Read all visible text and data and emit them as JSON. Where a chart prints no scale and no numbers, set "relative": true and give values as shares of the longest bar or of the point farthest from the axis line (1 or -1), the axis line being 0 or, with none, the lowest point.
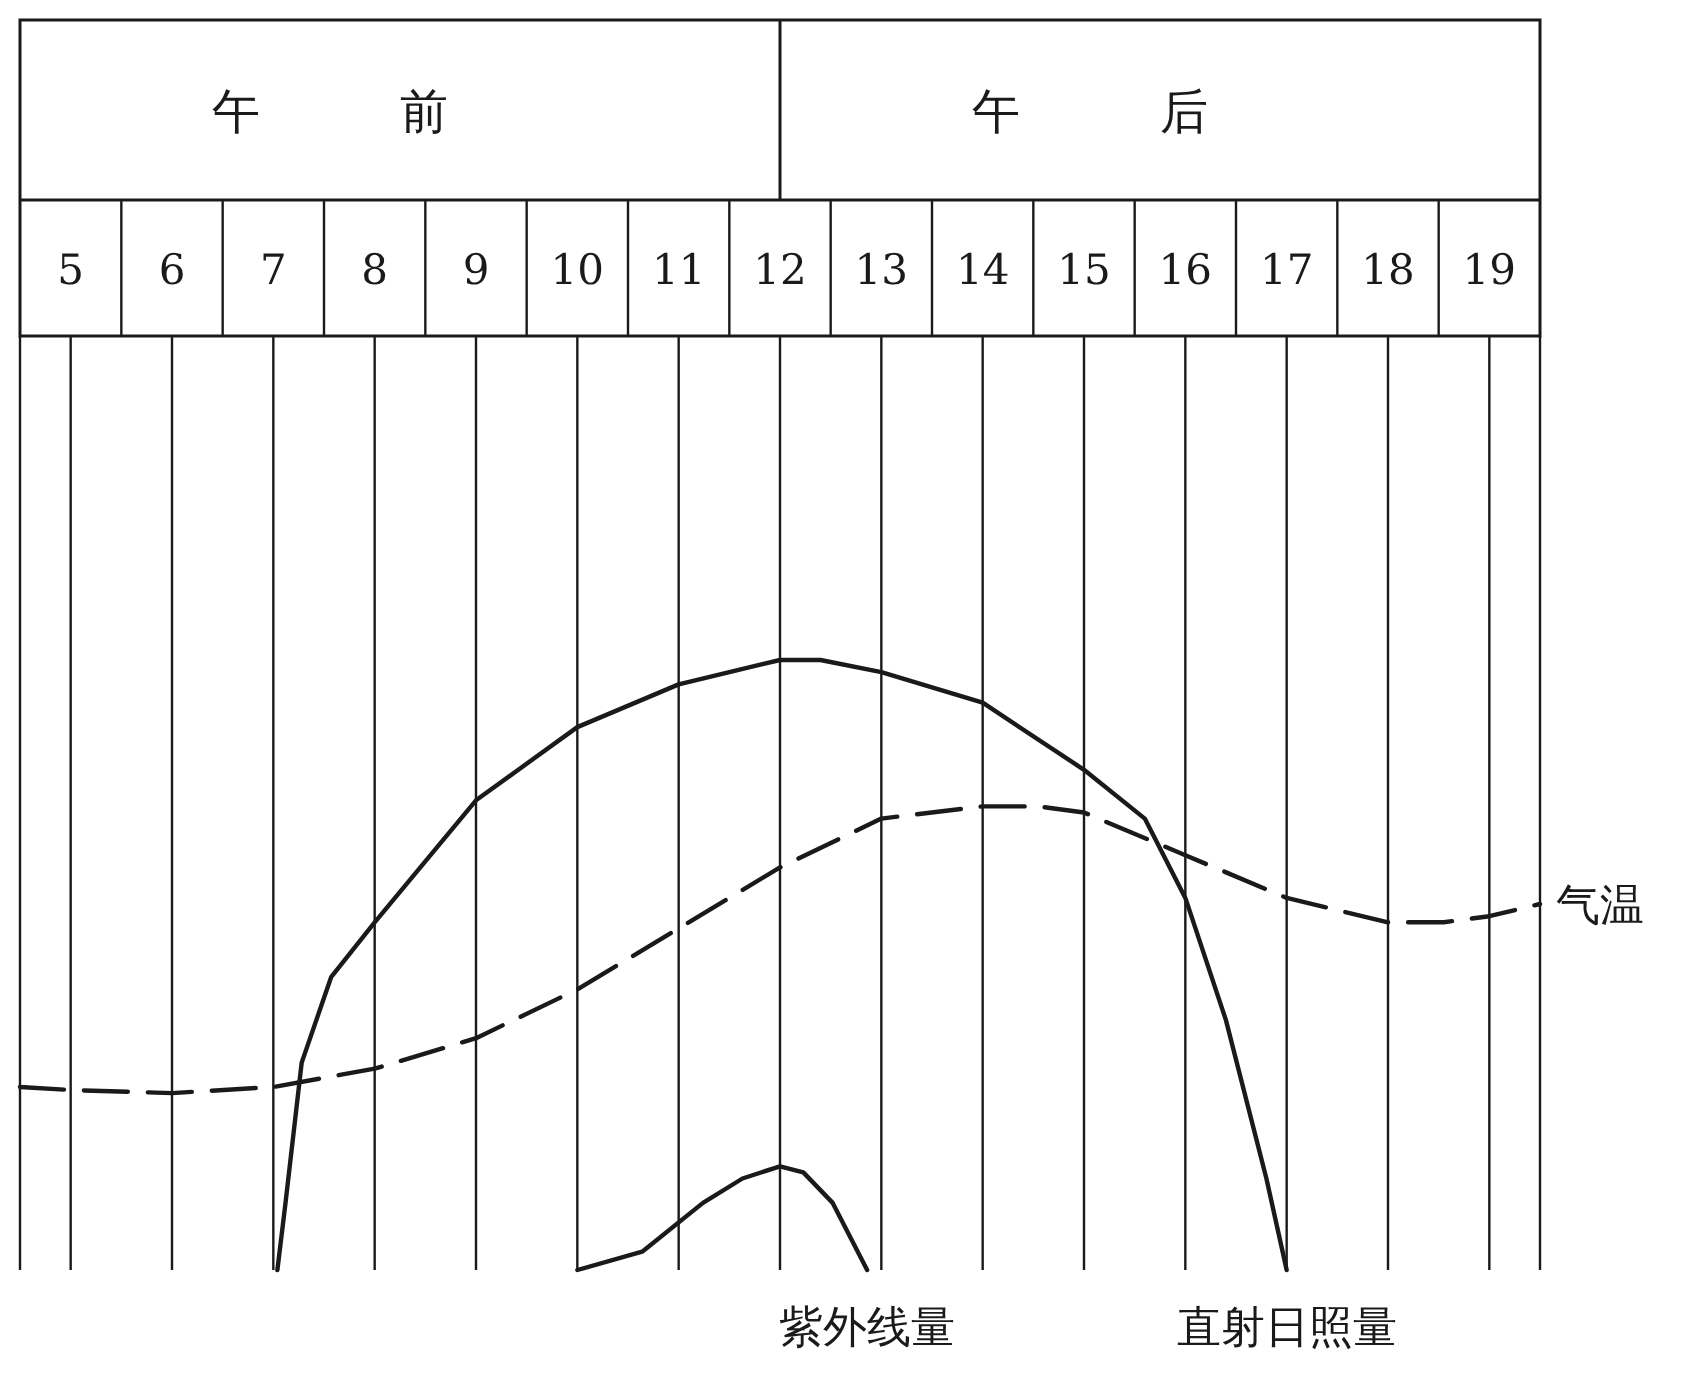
{
  "chart_data": {
    "type": "line",
    "relative": true,
    "xlim": [
      4.5,
      19.5
    ],
    "xticks": [
      5,
      6,
      7,
      8,
      9,
      10,
      11,
      12,
      13,
      14,
      15,
      16,
      17,
      18,
      19
    ],
    "grid": "x",
    "annotations": [
      "午前",
      "午后"
    ],
    "series": [
      {
        "name": "气温",
        "color": "#1a1a1a",
        "line_style": "dashed",
        "x": [
          4.5,
          5,
          6,
          7,
          8,
          9,
          10,
          11,
          12,
          13,
          14,
          14.55,
          15,
          16,
          17,
          18,
          18.55,
          19,
          19.5
        ],
        "values": [
          0.3,
          0.295,
          0.29,
          0.3,
          0.33,
          0.38,
          0.46,
          0.56,
          0.66,
          0.74,
          0.76,
          0.76,
          0.75,
          0.68,
          0.61,
          0.57,
          0.57,
          0.58,
          0.6
        ]
      },
      {
        "name": "直射日照量",
        "color": "#1a1a1a",
        "line_style": "solid",
        "x": [
          7.04,
          7.12,
          7.28,
          7.57,
          8,
          9,
          10,
          11,
          12,
          12.4,
          13,
          14,
          15,
          15.6,
          16,
          16.4,
          16.8,
          17
        ],
        "values": [
          0,
          0.11,
          0.34,
          0.48,
          0.57,
          0.77,
          0.89,
          0.96,
          1.0,
          1.0,
          0.98,
          0.93,
          0.82,
          0.74,
          0.61,
          0.41,
          0.15,
          0
        ]
      },
      {
        "name": "紫外线量",
        "color": "#1a1a1a",
        "line_style": "solid",
        "x": [
          10,
          10.64,
          11.24,
          11.63,
          12,
          12.23,
          12.52,
          12.86
        ],
        "values": [
          0,
          0.03,
          0.11,
          0.15,
          0.17,
          0.16,
          0.11,
          0
        ]
      }
    ]
  }
}
